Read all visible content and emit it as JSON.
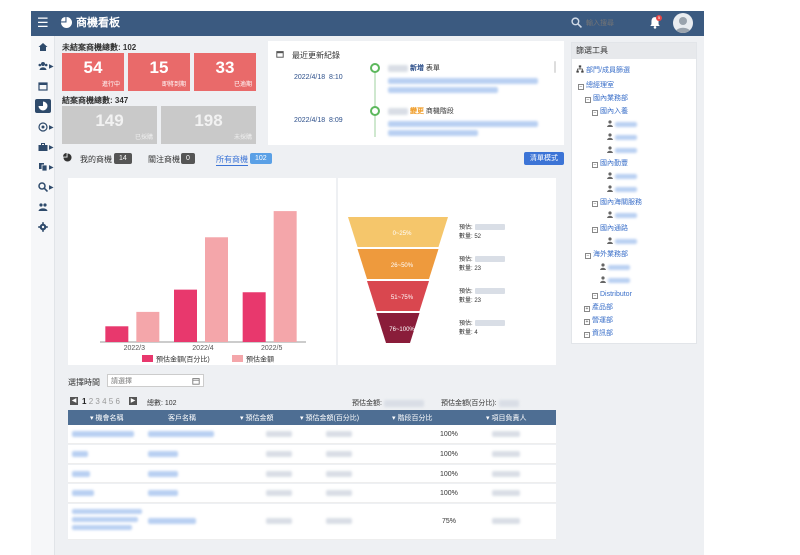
{
  "header": {
    "title": "商機看板",
    "search_placeholder": "輸入搜尋",
    "notification_count": "5"
  },
  "summary": {
    "open_title": "未結案商機總數: 102",
    "open_stats": [
      {
        "value": "54",
        "caption": "進行中"
      },
      {
        "value": "15",
        "caption": "即將到期"
      },
      {
        "value": "33",
        "caption": "已逾期"
      }
    ],
    "closed_title": "結案商機總數: 347",
    "closed_stats": [
      {
        "value": "149",
        "caption": "已採購"
      },
      {
        "value": "198",
        "caption": "未採購"
      }
    ]
  },
  "updates": {
    "title": "最近更新紀錄",
    "items": [
      {
        "date": "2022/4/18",
        "time": "8:10",
        "action": "新增",
        "object": "表單"
      },
      {
        "date": "2022/4/18",
        "time": "8:09",
        "action": "變更",
        "object": "商機階段"
      }
    ]
  },
  "tabs": [
    {
      "label": "我的商機",
      "count": "14"
    },
    {
      "label": "關注商機",
      "count": "0"
    },
    {
      "label": "所有商機",
      "count": "102"
    }
  ],
  "list_mode_button": "清單模式",
  "colors": {
    "accent": "#3c74d6",
    "header": "#3b5a80",
    "bar_dark": "#e8386d",
    "bar_light": "#f4a6aa"
  },
  "chart_data": [
    {
      "type": "bar",
      "categories": [
        "2022/3",
        "2022/4",
        "2022/5"
      ],
      "series": [
        {
          "name": "預估金額(百分比)",
          "color": "#e8386d",
          "values": [
            12,
            40,
            38
          ]
        },
        {
          "name": "預估金額",
          "color": "#f4a6aa",
          "values": [
            23,
            80,
            100
          ]
        }
      ],
      "ylim": [
        0,
        110
      ],
      "legend": "bottom"
    },
    {
      "type": "funnel",
      "stages": [
        {
          "label": "0~25%",
          "amount_label": "預估:",
          "count_label": "數量:",
          "count": "52",
          "color": "#f5c66b"
        },
        {
          "label": "26~50%",
          "amount_label": "預估:",
          "count_label": "數量:",
          "count": "23",
          "color": "#ee9a3d"
        },
        {
          "label": "51~75%",
          "amount_label": "預估:",
          "count_label": "數量:",
          "count": "23",
          "color": "#d9474f"
        },
        {
          "label": "76~100%",
          "amount_label": "預估:",
          "count_label": "數量:",
          "count": "4",
          "color": "#8a1d3a"
        }
      ]
    }
  ],
  "date_filter": {
    "label": "選擇時間",
    "placeholder": "請選擇"
  },
  "pagination": {
    "pages": [
      "1",
      "2",
      "3",
      "4",
      "5",
      "6"
    ],
    "current": "1",
    "total_label": "總數: 102"
  },
  "totals": {
    "amount_label": "預估金額:",
    "percent_label": "預估金額(百分比):"
  },
  "table": {
    "columns": [
      "機會名稱",
      "客戶名稱",
      "預估金額",
      "預估金額(百分比)",
      "階段百分比",
      "項目負責人"
    ],
    "stage_values": [
      "100%",
      "100%",
      "100%",
      "100%",
      "75%"
    ]
  },
  "filter_panel": {
    "title": "篩選工具",
    "subtitle": "部門/成員篩選",
    "tree": [
      {
        "label": "總經理室",
        "box": "−",
        "level": 0
      },
      {
        "label": "國內業務部",
        "box": "−",
        "level": 1
      },
      {
        "label": "國內入養",
        "box": "−",
        "level": 2
      },
      {
        "label": "國內勤豐",
        "box": "−",
        "level": 2
      },
      {
        "label": "國內海關服務",
        "box": "−",
        "level": 2
      },
      {
        "label": "國內通路",
        "box": "−",
        "level": 2
      },
      {
        "label": "海外業務部",
        "box": "−",
        "level": 1
      },
      {
        "label": "Distributor",
        "box": "−",
        "level": 2
      },
      {
        "label": "產品部",
        "box": "+",
        "level": 0
      },
      {
        "label": "營運部",
        "box": "+",
        "level": 0
      },
      {
        "label": "資訊部",
        "box": "−",
        "level": 0
      }
    ]
  }
}
